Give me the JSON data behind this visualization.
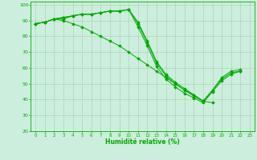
{
  "xlabel": "Humidité relative (%)",
  "background_color": "#cceedd",
  "grid_color": "#aaccaa",
  "line_color": "#00aa00",
  "xlim": [
    -0.5,
    23.5
  ],
  "ylim": [
    20,
    102
  ],
  "yticks": [
    20,
    30,
    40,
    50,
    60,
    70,
    80,
    90,
    100
  ],
  "xticks": [
    0,
    1,
    2,
    3,
    4,
    5,
    6,
    7,
    8,
    9,
    10,
    11,
    12,
    13,
    14,
    15,
    16,
    17,
    18,
    19,
    20,
    21,
    22,
    23
  ],
  "series": [
    [
      88,
      89,
      91,
      91,
      93,
      94,
      94,
      95,
      96,
      96,
      97,
      89,
      77,
      64,
      56,
      51,
      47,
      43,
      39,
      46,
      54,
      58,
      59,
      null
    ],
    [
      88,
      89,
      91,
      92,
      93,
      94,
      94,
      95,
      96,
      96,
      97,
      88,
      76,
      63,
      55,
      50,
      46,
      42,
      39,
      46,
      53,
      57,
      58,
      null
    ],
    [
      88,
      89,
      91,
      92,
      93,
      94,
      94,
      95,
      96,
      96,
      97,
      86,
      74,
      61,
      53,
      48,
      44,
      41,
      38,
      45,
      52,
      56,
      58,
      null
    ],
    [
      88,
      89,
      91,
      90,
      88,
      86,
      83,
      80,
      77,
      74,
      70,
      66,
      62,
      58,
      54,
      50,
      46,
      43,
      39,
      38,
      null,
      null,
      null,
      null
    ]
  ]
}
